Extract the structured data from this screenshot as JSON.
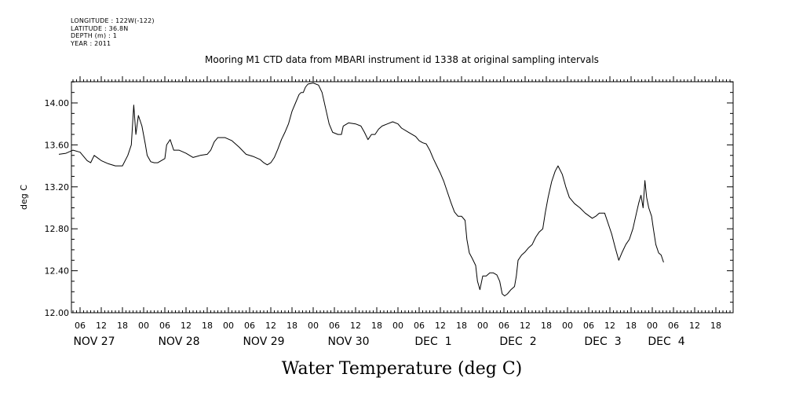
{
  "header": {
    "longitude": "LONGITUDE : 122W(-122)",
    "latitude": "LATITUDE : 36.8N",
    "depth": "DEPTH (m) : 1",
    "year": "YEAR : 2011"
  },
  "chart_data": {
    "type": "line",
    "title": "Mooring M1 CTD data from MBARI instrument id 1338 at original sampling intervals",
    "xlabel": "Water Temperature (deg C)",
    "ylabel": "deg C",
    "ylim": [
      12.0,
      14.2
    ],
    "xlim_hours": [
      0,
      186
    ],
    "grid": false,
    "y_ticks": [
      {
        "value": 12.0,
        "label": "12.00"
      },
      {
        "value": 12.4,
        "label": "12.40"
      },
      {
        "value": 12.8,
        "label": "12.80"
      },
      {
        "value": 13.2,
        "label": "13.20"
      },
      {
        "value": 13.6,
        "label": "13.60"
      },
      {
        "value": 14.0,
        "label": "14.00"
      }
    ],
    "x_hour_ticks": [
      {
        "t": 6,
        "label": "06"
      },
      {
        "t": 12,
        "label": "12"
      },
      {
        "t": 18,
        "label": "18"
      },
      {
        "t": 24,
        "label": "00"
      },
      {
        "t": 30,
        "label": "06"
      },
      {
        "t": 36,
        "label": "12"
      },
      {
        "t": 42,
        "label": "18"
      },
      {
        "t": 48,
        "label": "00"
      },
      {
        "t": 54,
        "label": "06"
      },
      {
        "t": 60,
        "label": "12"
      },
      {
        "t": 66,
        "label": "18"
      },
      {
        "t": 72,
        "label": "00"
      },
      {
        "t": 78,
        "label": "06"
      },
      {
        "t": 84,
        "label": "12"
      },
      {
        "t": 90,
        "label": "18"
      },
      {
        "t": 96,
        "label": "00"
      },
      {
        "t": 102,
        "label": "06"
      },
      {
        "t": 108,
        "label": "12"
      },
      {
        "t": 114,
        "label": "18"
      },
      {
        "t": 120,
        "label": "00"
      },
      {
        "t": 126,
        "label": "06"
      },
      {
        "t": 132,
        "label": "12"
      },
      {
        "t": 138,
        "label": "18"
      },
      {
        "t": 144,
        "label": "00"
      },
      {
        "t": 150,
        "label": "06"
      },
      {
        "t": 156,
        "label": "12"
      },
      {
        "t": 162,
        "label": "18"
      },
      {
        "t": 168,
        "label": "00"
      },
      {
        "t": 174,
        "label": "06"
      },
      {
        "t": 180,
        "label": "12"
      },
      {
        "t": 186,
        "label": "18"
      }
    ],
    "x_date_labels": [
      {
        "t": 10,
        "label": "NOV 27"
      },
      {
        "t": 34,
        "label": "NOV 28"
      },
      {
        "t": 58,
        "label": "NOV 29"
      },
      {
        "t": 82,
        "label": "NOV 30"
      },
      {
        "t": 106,
        "label": "DEC  1"
      },
      {
        "t": 130,
        "label": "DEC  2"
      },
      {
        "t": 154,
        "label": "DEC  3"
      },
      {
        "t": 172,
        "label": "DEC  4"
      }
    ],
    "series": [
      {
        "color": "#000000",
        "points": [
          [
            0,
            13.51
          ],
          [
            2,
            13.52
          ],
          [
            4,
            13.55
          ],
          [
            6,
            13.53
          ],
          [
            8,
            13.45
          ],
          [
            9,
            13.43
          ],
          [
            10,
            13.5
          ],
          [
            12,
            13.45
          ],
          [
            14,
            13.42
          ],
          [
            16,
            13.4
          ],
          [
            18,
            13.4
          ],
          [
            19.5,
            13.5
          ],
          [
            20.5,
            13.6
          ],
          [
            21.2,
            13.98
          ],
          [
            21.8,
            13.7
          ],
          [
            22.5,
            13.88
          ],
          [
            23.5,
            13.78
          ],
          [
            24.5,
            13.6
          ],
          [
            25,
            13.5
          ],
          [
            26,
            13.44
          ],
          [
            27,
            13.43
          ],
          [
            28,
            13.43
          ],
          [
            29,
            13.45
          ],
          [
            30,
            13.47
          ],
          [
            30.5,
            13.6
          ],
          [
            31.5,
            13.65
          ],
          [
            32.5,
            13.55
          ],
          [
            34,
            13.55
          ],
          [
            36,
            13.52
          ],
          [
            38,
            13.48
          ],
          [
            40,
            13.5
          ],
          [
            42,
            13.51
          ],
          [
            43,
            13.55
          ],
          [
            44,
            13.63
          ],
          [
            45,
            13.67
          ],
          [
            47,
            13.67
          ],
          [
            49,
            13.64
          ],
          [
            51,
            13.58
          ],
          [
            53,
            13.51
          ],
          [
            55,
            13.49
          ],
          [
            57,
            13.46
          ],
          [
            58,
            13.43
          ],
          [
            59,
            13.41
          ],
          [
            60,
            13.43
          ],
          [
            61,
            13.48
          ],
          [
            62,
            13.56
          ],
          [
            63,
            13.65
          ],
          [
            64,
            13.72
          ],
          [
            65,
            13.8
          ],
          [
            66,
            13.92
          ],
          [
            67,
            14.0
          ],
          [
            68,
            14.08
          ],
          [
            68.6,
            14.1
          ],
          [
            69.2,
            14.1
          ],
          [
            69.8,
            14.15
          ],
          [
            70.5,
            14.18
          ],
          [
            72,
            14.19
          ],
          [
            73.5,
            14.17
          ],
          [
            74.5,
            14.1
          ],
          [
            75.5,
            13.95
          ],
          [
            76.5,
            13.8
          ],
          [
            77.5,
            13.72
          ],
          [
            79,
            13.7
          ],
          [
            80,
            13.7
          ],
          [
            80.5,
            13.78
          ],
          [
            82,
            13.81
          ],
          [
            84,
            13.8
          ],
          [
            85.5,
            13.78
          ],
          [
            86.5,
            13.72
          ],
          [
            87.5,
            13.65
          ],
          [
            88.5,
            13.7
          ],
          [
            89.5,
            13.7
          ],
          [
            90.5,
            13.75
          ],
          [
            91.5,
            13.78
          ],
          [
            93,
            13.8
          ],
          [
            94.5,
            13.82
          ],
          [
            96,
            13.8
          ],
          [
            97,
            13.76
          ],
          [
            99,
            13.72
          ],
          [
            101,
            13.68
          ],
          [
            102,
            13.64
          ],
          [
            103,
            13.62
          ],
          [
            104,
            13.61
          ],
          [
            105,
            13.55
          ],
          [
            106,
            13.47
          ],
          [
            107,
            13.4
          ],
          [
            108,
            13.33
          ],
          [
            109,
            13.25
          ],
          [
            110,
            13.15
          ],
          [
            111,
            13.05
          ],
          [
            112,
            12.96
          ],
          [
            113,
            12.92
          ],
          [
            114,
            12.92
          ],
          [
            115,
            12.88
          ],
          [
            115.5,
            12.7
          ],
          [
            116.2,
            12.57
          ],
          [
            117,
            12.52
          ],
          [
            118,
            12.45
          ],
          [
            118.5,
            12.3
          ],
          [
            119.2,
            12.22
          ],
          [
            120,
            12.35
          ],
          [
            121,
            12.35
          ],
          [
            122,
            12.38
          ],
          [
            123,
            12.38
          ],
          [
            124,
            12.36
          ],
          [
            124.8,
            12.3
          ],
          [
            125.5,
            12.18
          ],
          [
            126.2,
            12.16
          ],
          [
            127,
            12.18
          ],
          [
            128,
            12.22
          ],
          [
            129,
            12.25
          ],
          [
            129.5,
            12.35
          ],
          [
            130,
            12.5
          ],
          [
            131,
            12.55
          ],
          [
            132,
            12.58
          ],
          [
            133,
            12.62
          ],
          [
            134,
            12.65
          ],
          [
            135,
            12.72
          ],
          [
            136,
            12.77
          ],
          [
            137,
            12.8
          ],
          [
            137.7,
            12.95
          ],
          [
            138.5,
            13.1
          ],
          [
            139.5,
            13.25
          ],
          [
            140.5,
            13.35
          ],
          [
            141.3,
            13.4
          ],
          [
            142.5,
            13.32
          ],
          [
            143.5,
            13.2
          ],
          [
            144.5,
            13.1
          ],
          [
            146,
            13.04
          ],
          [
            147.5,
            13.0
          ],
          [
            149,
            12.95
          ],
          [
            151,
            12.9
          ],
          [
            152,
            12.92
          ],
          [
            153,
            12.95
          ],
          [
            154.5,
            12.95
          ],
          [
            155.5,
            12.85
          ],
          [
            156.5,
            12.75
          ],
          [
            157.5,
            12.62
          ],
          [
            158.5,
            12.5
          ],
          [
            159.5,
            12.58
          ],
          [
            160.5,
            12.65
          ],
          [
            161.5,
            12.7
          ],
          [
            162.5,
            12.8
          ],
          [
            163.5,
            12.95
          ],
          [
            164.2,
            13.05
          ],
          [
            164.8,
            13.12
          ],
          [
            165.4,
            13.0
          ],
          [
            165.9,
            13.26
          ],
          [
            166.4,
            13.1
          ],
          [
            167,
            13.0
          ],
          [
            167.8,
            12.92
          ],
          [
            168.3,
            12.8
          ],
          [
            169,
            12.65
          ],
          [
            169.8,
            12.57
          ],
          [
            170.5,
            12.55
          ],
          [
            171.2,
            12.48
          ]
        ]
      }
    ]
  }
}
